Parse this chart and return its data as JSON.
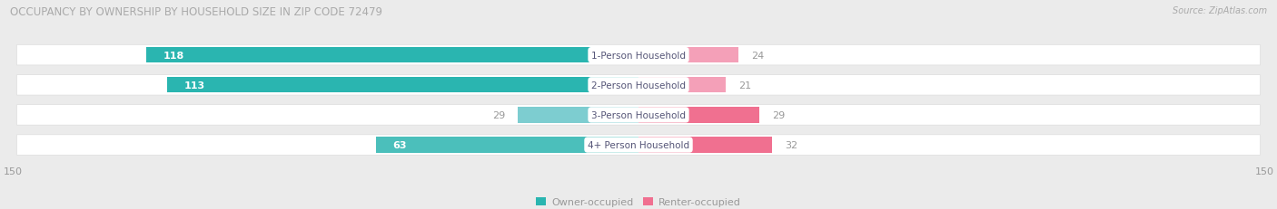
{
  "title": "OCCUPANCY BY OWNERSHIP BY HOUSEHOLD SIZE IN ZIP CODE 72479",
  "source": "Source: ZipAtlas.com",
  "categories": [
    "1-Person Household",
    "2-Person Household",
    "3-Person Household",
    "4+ Person Household"
  ],
  "owner_values": [
    118,
    113,
    29,
    63
  ],
  "renter_values": [
    24,
    21,
    29,
    32
  ],
  "owner_colors": [
    "#2ab5b0",
    "#2ab5b0",
    "#7dcdd0",
    "#4bbfbb"
  ],
  "renter_colors": [
    "#f4a0b8",
    "#f4a0b8",
    "#f07090",
    "#f07090"
  ],
  "axis_max": 150,
  "bg_color": "#ebebeb",
  "row_bg_color": "#ffffff",
  "title_color": "#aaaaaa",
  "source_color": "#aaaaaa",
  "value_color_inside": "#ffffff",
  "value_color_outside": "#999999",
  "cat_label_color": "#555577",
  "legend_owner": "Owner-occupied",
  "legend_renter": "Renter-occupied",
  "legend_owner_color": "#2ab5b0",
  "legend_renter_color": "#f07090"
}
